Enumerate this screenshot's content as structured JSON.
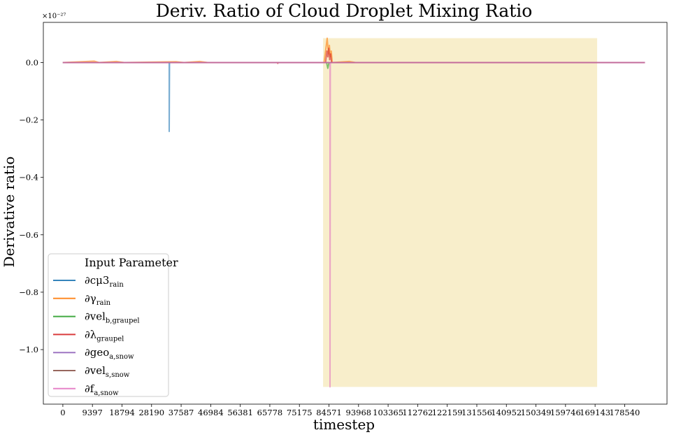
{
  "chart_data": {
    "type": "line",
    "title": "Deriv. Ratio of Cloud Droplet Mixing Ratio",
    "xlabel": "timestep",
    "ylabel": "Derivative ratio",
    "y_exponent": "×10⁻²⁷",
    "xlim": [
      -6200,
      192000
    ],
    "ylim": [
      -1.19,
      0.14
    ],
    "xticks": [
      0,
      9397,
      18794,
      28190,
      37587,
      46984,
      56381,
      65778,
      75175,
      84571,
      93968,
      103365,
      112762,
      122159,
      131556,
      140952,
      150349,
      159746,
      169143,
      178540
    ],
    "yticks": [
      0.0,
      -0.2,
      -0.4,
      -0.6,
      -0.8,
      -1.0
    ],
    "ytick_labels": [
      "0.0",
      "−0.2",
      "−0.4",
      "−0.6",
      "−0.8",
      "−1.0"
    ],
    "highlight_region": {
      "x": [
        82700,
        169800
      ],
      "y": [
        -1.13,
        0.085
      ],
      "color": "#f8eecb"
    },
    "legend": {
      "title": "Input Parameter",
      "placement": "lower-left"
    },
    "series": [
      {
        "name": "∂cμ3_rain",
        "color": "#1f77b4",
        "points": [
          [
            0,
            0
          ],
          [
            33800,
            0
          ],
          [
            33800,
            -0.24
          ],
          [
            33900,
            0
          ],
          [
            185000,
            0
          ]
        ]
      },
      {
        "name": "∂γ_rain",
        "color": "#ff7f0e",
        "points": [
          [
            0,
            0
          ],
          [
            10000,
            0.005
          ],
          [
            11500,
            0
          ],
          [
            17000,
            0.004
          ],
          [
            19500,
            0
          ],
          [
            36000,
            0.003
          ],
          [
            38500,
            0
          ],
          [
            43500,
            0.004
          ],
          [
            46000,
            0
          ],
          [
            83000,
            0
          ],
          [
            83600,
            0.05
          ],
          [
            84000,
            0.085
          ],
          [
            84400,
            0.03
          ],
          [
            84700,
            0.06
          ],
          [
            85000,
            0.02
          ],
          [
            85300,
            0.04
          ],
          [
            85600,
            0
          ],
          [
            91000,
            0.004
          ],
          [
            93000,
            0
          ],
          [
            185000,
            0
          ]
        ]
      },
      {
        "name": "∂vel_b,graupel",
        "color": "#2ca02c",
        "points": [
          [
            0,
            0
          ],
          [
            83800,
            0
          ],
          [
            84200,
            -0.02
          ],
          [
            84600,
            0
          ],
          [
            185000,
            0
          ]
        ]
      },
      {
        "name": "∂λ_graupel",
        "color": "#d62728",
        "points": [
          [
            0,
            0
          ],
          [
            68200,
            0
          ],
          [
            68300,
            -0.003
          ],
          [
            68400,
            0
          ],
          [
            83500,
            0
          ],
          [
            83900,
            0.04
          ],
          [
            84200,
            0.02
          ],
          [
            84500,
            0.05
          ],
          [
            84800,
            0.01
          ],
          [
            85100,
            0.03
          ],
          [
            85400,
            0
          ],
          [
            185000,
            0
          ]
        ]
      },
      {
        "name": "∂geo_a,snow",
        "color": "#9467bd",
        "points": [
          [
            0,
            0
          ],
          [
            185000,
            0
          ]
        ]
      },
      {
        "name": "∂vel_s,snow",
        "color": "#8c564b",
        "points": [
          [
            0,
            0
          ],
          [
            185000,
            0
          ]
        ]
      },
      {
        "name": "∂f_a,snow",
        "color": "#e377c2",
        "points": [
          [
            0,
            0
          ],
          [
            84900,
            0
          ],
          [
            84900,
            -1.13
          ],
          [
            85000,
            0
          ],
          [
            185000,
            0
          ]
        ]
      }
    ]
  },
  "legend_items": [
    {
      "sym": "∂cμ3",
      "sub": "rain"
    },
    {
      "sym": "∂γ",
      "sub": "rain"
    },
    {
      "sym": "∂vel",
      "sub": "b,graupel"
    },
    {
      "sym": "∂λ",
      "sub": "graupel"
    },
    {
      "sym": "∂geo",
      "sub": "a,snow"
    },
    {
      "sym": "∂vel",
      "sub": "s,snow"
    },
    {
      "sym": "∂f",
      "sub": "a,snow"
    }
  ]
}
